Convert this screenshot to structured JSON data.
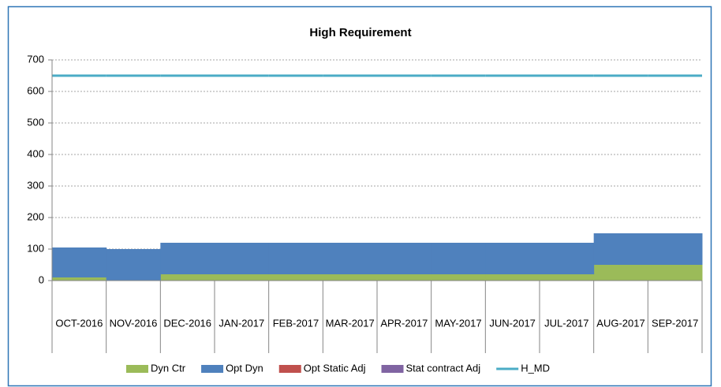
{
  "chart_data": {
    "type": "area",
    "title": "High Requirement",
    "categories": [
      "OCT-2016",
      "NOV-2016",
      "DEC-2016",
      "JAN-2017",
      "FEB-2017",
      "MAR-2017",
      "APR-2017",
      "MAY-2017",
      "JUN-2017",
      "JUL-2017",
      "AUG-2017",
      "SEP-2017"
    ],
    "series": [
      {
        "name": "Dyn Ctr",
        "color": "#9bbb59",
        "values": [
          10,
          0,
          20,
          20,
          20,
          20,
          20,
          20,
          20,
          20,
          50,
          50
        ]
      },
      {
        "name": "Opt Dyn",
        "color": "#4f81bd",
        "values": [
          95,
          100,
          100,
          100,
          100,
          100,
          100,
          100,
          100,
          100,
          100,
          100
        ]
      },
      {
        "name": "Opt Static Adj",
        "color": "#c0504d",
        "values": [
          0,
          0,
          0,
          0,
          0,
          0,
          0,
          0,
          0,
          0,
          0,
          0
        ]
      },
      {
        "name": "Stat contract Adj",
        "color": "#8064a2",
        "values": [
          0,
          0,
          0,
          0,
          0,
          0,
          0,
          0,
          0,
          0,
          0,
          0
        ]
      },
      {
        "name": "H_MD",
        "color": "#4bacc6",
        "line": true,
        "values": [
          650,
          650,
          650,
          650,
          650,
          650,
          650,
          650,
          650,
          650,
          650,
          650
        ]
      }
    ],
    "ylim": [
      0,
      700
    ],
    "yticks": [
      0,
      100,
      200,
      300,
      400,
      500,
      600,
      700
    ],
    "grid": true,
    "legend": "bottom"
  }
}
